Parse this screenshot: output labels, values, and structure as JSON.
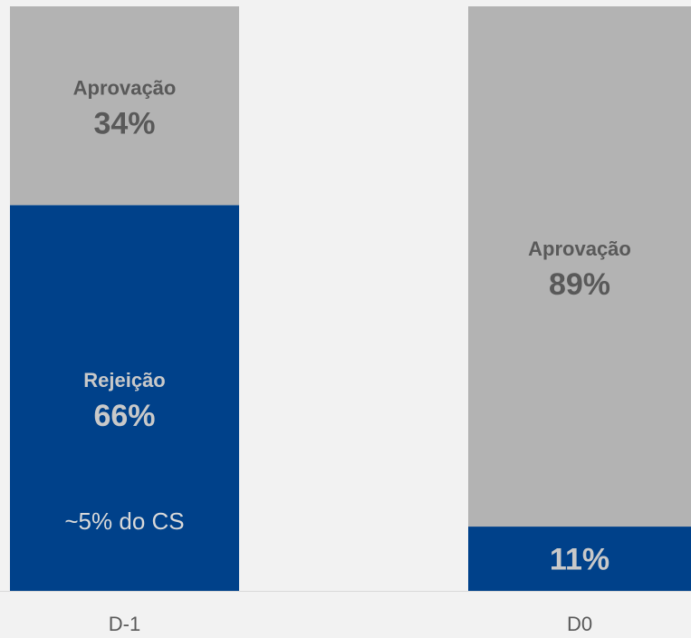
{
  "chart_data": {
    "type": "stacked_bar",
    "categories": [
      "D-1",
      "D0"
    ],
    "series": [
      {
        "name": "Rejeição",
        "color": "#00418a",
        "values": [
          66,
          11
        ],
        "value_labels": [
          "66%",
          "11%"
        ]
      },
      {
        "name": "Aprovação",
        "color": "#b3b3b3",
        "values": [
          34,
          89
        ],
        "value_labels": [
          "34%",
          "89%"
        ]
      }
    ],
    "ylim": [
      0,
      100
    ],
    "annotation": "~5% do CS"
  }
}
